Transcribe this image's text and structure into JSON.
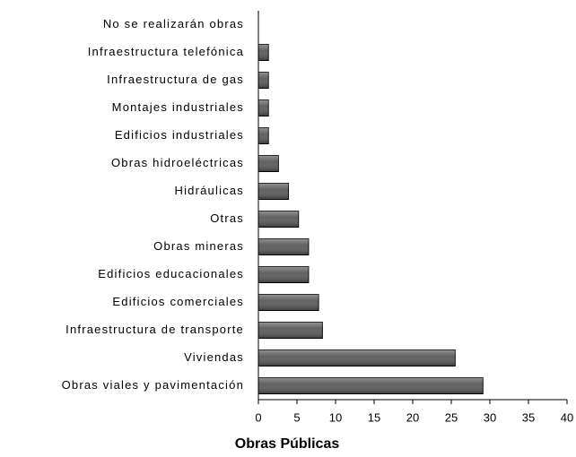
{
  "chart_data": {
    "type": "hbar",
    "xlabel": "Obras Públicas",
    "categories": [
      "No se realizarán obras",
      "Infraestructura telefónica",
      "Infraestructura de gas",
      "Montajes industriales",
      "Edificios industriales",
      "Obras hidroeléctricas",
      "Hidráulicas",
      "Otras",
      "Obras mineras",
      "Edificios educacionales",
      "Edificios comerciales",
      "Infraestructura de transporte",
      "Viviendas",
      "Obras viales y pavimentación"
    ],
    "values": [
      0,
      1.3,
      1.3,
      1.3,
      1.3,
      2.6,
      3.9,
      5.2,
      6.5,
      6.5,
      7.8,
      8.3,
      25.5,
      29.1
    ],
    "color": "#595959",
    "xlim": [
      0,
      40
    ],
    "xticks": [
      0,
      5,
      10,
      15,
      20,
      25,
      30,
      35,
      40
    ]
  }
}
